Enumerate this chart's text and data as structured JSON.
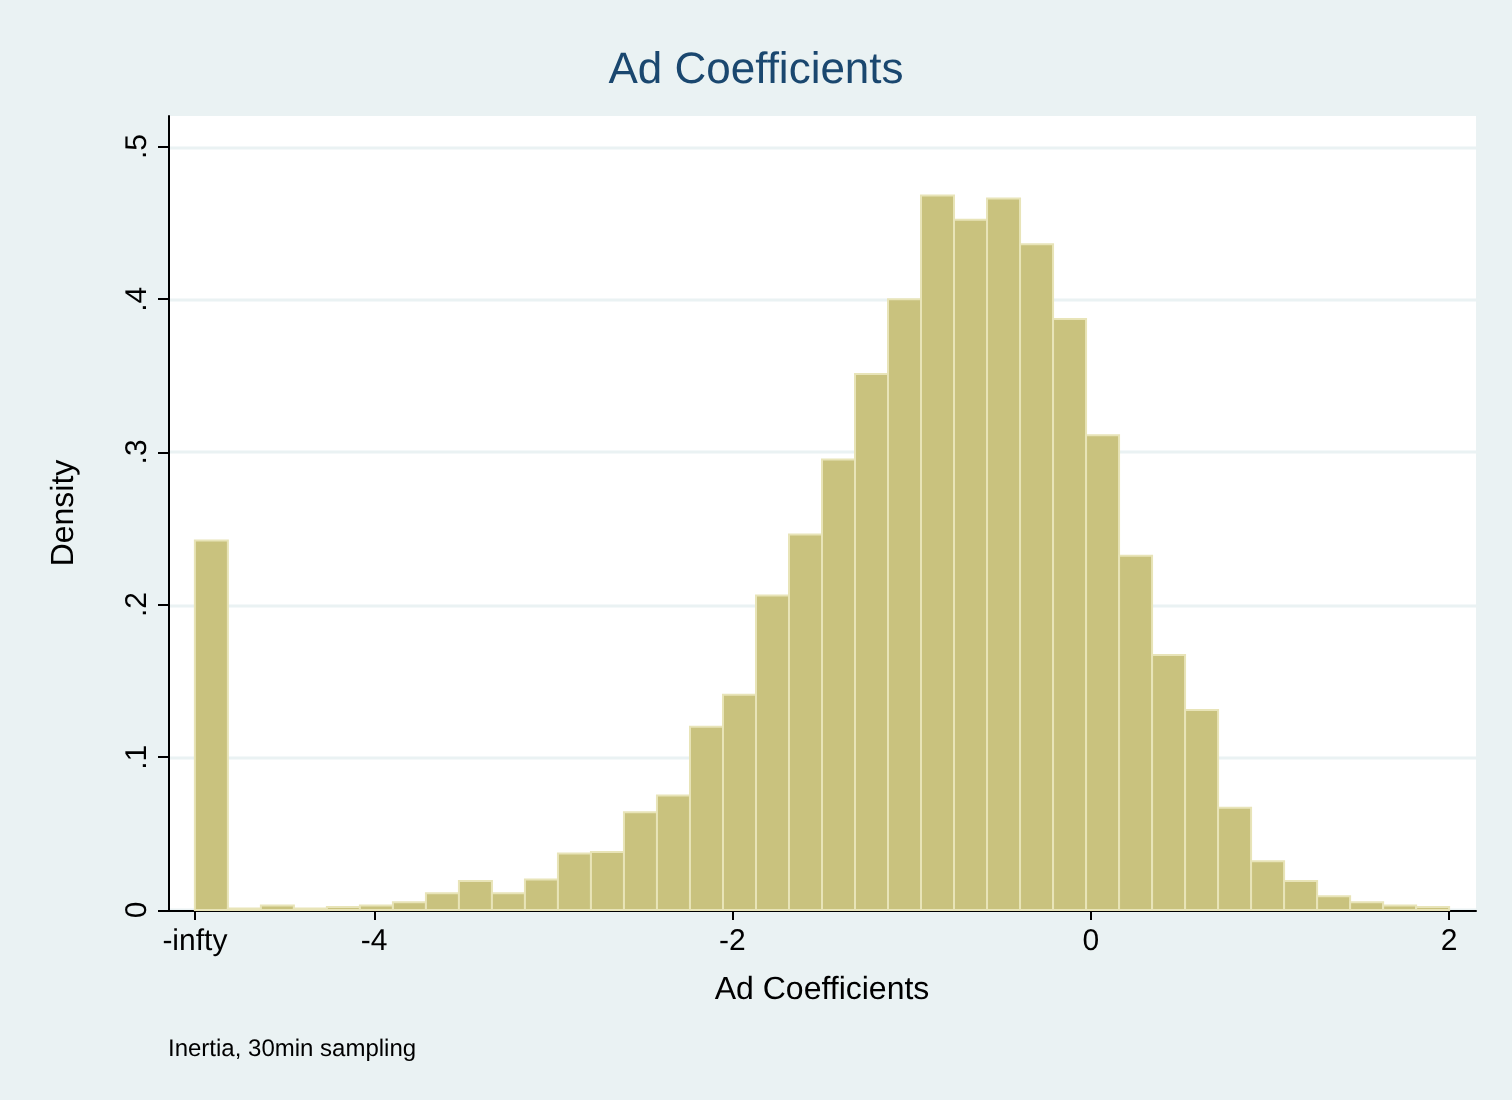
{
  "chart_data": {
    "type": "histogram",
    "title": "Ad Coefficients",
    "xlabel": "Ad Coefficients",
    "ylabel": "Density",
    "annotations": [
      "Inertia, 30min sampling"
    ],
    "bins": [
      -5,
      -4.8158,
      -4.6316,
      -4.4474,
      -4.2632,
      -4.0789,
      -3.8947,
      -3.7105,
      -3.5263,
      -3.3421,
      -3.1579,
      -2.9737,
      -2.7895,
      -2.6053,
      -2.4211,
      -2.2368,
      -2.0526,
      -1.8684,
      -1.6842,
      -1.5,
      -1.3158,
      -1.1316,
      -0.9474,
      -0.7632,
      -0.5789,
      -0.3947,
      -0.2105,
      -0.0263,
      0.1579,
      0.3421,
      0.5263,
      0.7105,
      0.8947,
      1.0789,
      1.2632,
      1.4474,
      1.6316,
      1.8158,
      2
    ],
    "values": [
      0.242,
      0.001,
      0.003,
      0.001,
      0.002,
      0.003,
      0.005,
      0.011,
      0.019,
      0.011,
      0.02,
      0.037,
      0.038,
      0.064,
      0.075,
      0.12,
      0.141,
      0.206,
      0.246,
      0.295,
      0.351,
      0.4,
      0.468,
      0.452,
      0.466,
      0.436,
      0.387,
      0.311,
      0.232,
      0.167,
      0.131,
      0.067,
      0.032,
      0.019,
      0.009,
      0.005,
      0.003,
      0.002
    ],
    "color": "#c9c27e",
    "xlim": [
      -5.15,
      2.15
    ],
    "xticks": [
      {
        "value": -5,
        "label": "-infty"
      },
      -4,
      -2,
      0,
      2
    ],
    "ylim": [
      0,
      0.52
    ],
    "yticks": [
      0,
      {
        "value": 0.1,
        "label": ".1"
      },
      {
        "value": 0.2,
        "label": ".2"
      },
      {
        "value": 0.3,
        "label": ".3"
      },
      {
        "value": 0.4,
        "label": ".4"
      },
      {
        "value": 0.5,
        "label": ".5"
      }
    ],
    "grid": "y"
  }
}
